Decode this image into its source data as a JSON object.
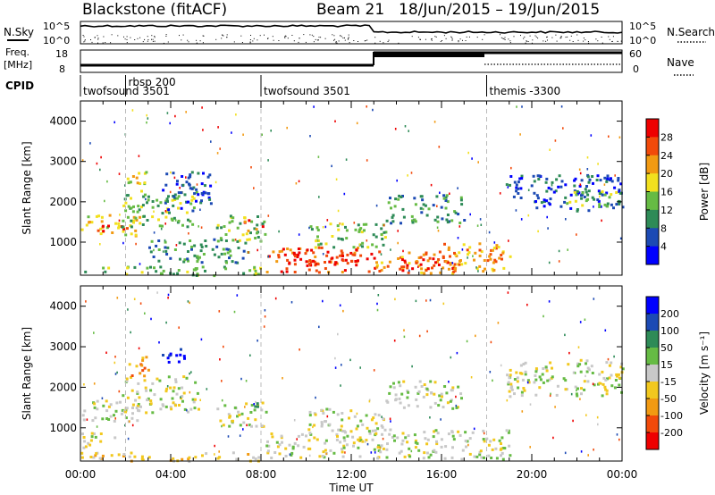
{
  "header": {
    "title": "Blackstone (fitACF)",
    "beam": "Beam 21",
    "date_range": "18/Jun/2015 – 19/Jun/2015"
  },
  "top_panels": {
    "nsky_label": "N.Sky",
    "nsky_ticks": [
      "10^5",
      "10^0"
    ],
    "nsearch_label": "N.Search",
    "nsearch_ticks": [
      "10^5",
      "10^0"
    ],
    "freq_label": "Freq.",
    "freq_unit": "[MHz]",
    "freq_ticks": [
      "18",
      "8"
    ],
    "nave_label": "Nave",
    "nave_ticks": [
      "60",
      "0"
    ],
    "cpid_label": "CPID"
  },
  "cpid_segments": [
    {
      "start": 0.0,
      "label": "twofsound 3501"
    },
    {
      "start": 2.0,
      "label": "rbsp 200"
    },
    {
      "start": 8.0,
      "label": "twofsound 3501"
    },
    {
      "start": 18.0,
      "label": "themis -3300"
    }
  ],
  "chart_data": [
    {
      "type": "heatmap",
      "name": "power-panel",
      "xlabel": "",
      "ylabel": "Slant Range [km]",
      "xlim": [
        0,
        24
      ],
      "ylim": [
        180,
        4500
      ],
      "y_ticks": [
        1000,
        2000,
        3000,
        4000
      ],
      "colorbar_label": "Power [dB]",
      "colorbar_ticks": [
        "28",
        "24",
        "20",
        "16",
        "12",
        "8",
        "4"
      ],
      "colors": [
        "#0000ff",
        "#1c4ab4",
        "#2e8b57",
        "#66bb44",
        "#f2e01e",
        "#f29a12",
        "#f24a0a",
        "#ee0000"
      ],
      "blobs": [
        {
          "t": [
            0.0,
            2.6
          ],
          "r": [
            1180,
            1700
          ],
          "v": 4
        },
        {
          "t": [
            0.6,
            2.2
          ],
          "r": [
            1300,
            1500
          ],
          "v": 7
        },
        {
          "t": [
            1.8,
            5.2
          ],
          "r": [
            1400,
            2300
          ],
          "v": 3
        },
        {
          "t": [
            3.6,
            5.8
          ],
          "r": [
            1800,
            2800
          ],
          "v": 1
        },
        {
          "t": [
            2.0,
            3.0
          ],
          "r": [
            2300,
            2800
          ],
          "v": 4
        },
        {
          "t": [
            6.0,
            8.2
          ],
          "r": [
            1050,
            1700
          ],
          "v": 3
        },
        {
          "t": [
            7.2,
            8.2
          ],
          "r": [
            1300,
            1600
          ],
          "v": 6
        },
        {
          "t": [
            8.2,
            13.0
          ],
          "r": [
            280,
            900
          ],
          "v": 6
        },
        {
          "t": [
            9.0,
            12.4
          ],
          "r": [
            450,
            800
          ],
          "v": 7
        },
        {
          "t": [
            10.0,
            13.5
          ],
          "r": [
            900,
            1500
          ],
          "v": 3
        },
        {
          "t": [
            13.0,
            17.0
          ],
          "r": [
            250,
            800
          ],
          "v": 5
        },
        {
          "t": [
            14.0,
            16.5
          ],
          "r": [
            300,
            650
          ],
          "v": 7
        },
        {
          "t": [
            16.0,
            19.0
          ],
          "r": [
            300,
            1000
          ],
          "v": 5
        },
        {
          "t": [
            13.5,
            17.0
          ],
          "r": [
            1500,
            2200
          ],
          "v": 2
        },
        {
          "t": [
            18.8,
            24.0
          ],
          "r": [
            1800,
            2700
          ],
          "v": 1
        },
        {
          "t": [
            21.5,
            24.0
          ],
          "r": [
            1900,
            2300
          ],
          "v": 3
        },
        {
          "t": [
            0.0,
            8.0
          ],
          "r": [
            200,
            420
          ],
          "v": 3
        },
        {
          "t": [
            3.0,
            7.5
          ],
          "r": [
            500,
            1100
          ],
          "v": 2
        }
      ]
    },
    {
      "type": "heatmap",
      "name": "velocity-panel",
      "xlabel": "Time UT",
      "ylabel": "Slant Range [km]",
      "xlim": [
        0,
        24
      ],
      "ylim": [
        180,
        4500
      ],
      "y_ticks": [
        1000,
        2000,
        3000,
        4000
      ],
      "x_ticks": [
        "00:00",
        "04:00",
        "08:00",
        "12:00",
        "16:00",
        "20:00",
        "00:00"
      ],
      "colorbar_label": "Velocity [m s⁻¹]",
      "colorbar_ticks": [
        "200",
        "100",
        "50",
        "15",
        "-15",
        "-50",
        "-100",
        "-200"
      ],
      "colors": [
        "#ee0000",
        "#f24a0a",
        "#f29a12",
        "#f2c81e",
        "#c8c8c8",
        "#66bb44",
        "#2e8b57",
        "#1c4ab4",
        "#0000ff"
      ],
      "blobs": [
        {
          "t": [
            0.0,
            2.6
          ],
          "r": [
            1180,
            1700
          ],
          "v": 4
        },
        {
          "t": [
            1.8,
            5.2
          ],
          "r": [
            1400,
            2300
          ],
          "v": 4
        },
        {
          "t": [
            2.0,
            3.0
          ],
          "r": [
            2300,
            2800
          ],
          "v": 2
        },
        {
          "t": [
            3.6,
            4.6
          ],
          "r": [
            2500,
            3000
          ],
          "v": 8
        },
        {
          "t": [
            6.0,
            8.2
          ],
          "r": [
            1050,
            1700
          ],
          "v": 4
        },
        {
          "t": [
            7.6,
            8.2
          ],
          "r": [
            1500,
            1700
          ],
          "v": 6
        },
        {
          "t": [
            8.2,
            13.0
          ],
          "r": [
            280,
            900
          ],
          "v": 4
        },
        {
          "t": [
            10.0,
            13.5
          ],
          "r": [
            900,
            1500
          ],
          "v": 4
        },
        {
          "t": [
            13.0,
            19.0
          ],
          "r": [
            250,
            1000
          ],
          "v": 4
        },
        {
          "t": [
            13.5,
            17.0
          ],
          "r": [
            1500,
            2200
          ],
          "v": 4
        },
        {
          "t": [
            18.8,
            24.0
          ],
          "r": [
            1800,
            2700
          ],
          "v": 4
        },
        {
          "t": [
            0.0,
            8.0
          ],
          "r": [
            200,
            420
          ],
          "v": 3
        },
        {
          "t": [
            0.0,
            1.5
          ],
          "r": [
            500,
            900
          ],
          "v": 4
        }
      ]
    }
  ]
}
